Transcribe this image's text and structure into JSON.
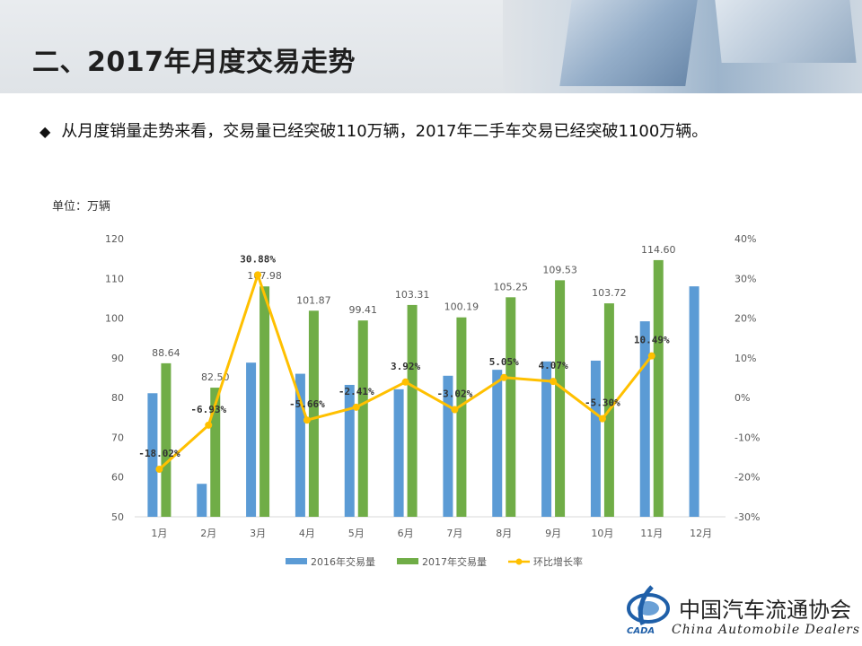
{
  "header": {
    "title": "二、2017年月度交易走势"
  },
  "bullet": {
    "icon": "diamond-bullet-icon",
    "text": "从月度销量走势来看，交易量已经突破110万辆，2017年二手车交易已经突破1100万辆。"
  },
  "unit_label": "单位：万辆",
  "logo": {
    "name_cn": "中国汽车流通协会",
    "name_en": "China  Automobile Dealers",
    "abbr": "CADA"
  },
  "colors": {
    "series_2016": "#5b9bd5",
    "series_2017": "#70ad47",
    "growth_line": "#ffc000"
  },
  "chart_data": {
    "type": "bar",
    "categories": [
      "1月",
      "2月",
      "3月",
      "4月",
      "5月",
      "6月",
      "7月",
      "8月",
      "9月",
      "10月",
      "11月",
      "12月"
    ],
    "series": [
      {
        "name": "2016年交易量",
        "type": "bar",
        "axis": "left",
        "values": [
          81.1,
          58.3,
          88.8,
          86.0,
          83.2,
          82.1,
          85.5,
          87.0,
          89.1,
          89.3,
          99.2,
          108.0
        ]
      },
      {
        "name": "2017年交易量",
        "type": "bar",
        "axis": "left",
        "values": [
          88.64,
          82.5,
          107.98,
          101.87,
          99.41,
          103.31,
          100.19,
          105.25,
          109.53,
          103.72,
          114.6,
          null
        ],
        "labels": [
          "88.64",
          "82.50",
          "107.98",
          "101.87",
          "99.41",
          "103.31",
          "100.19",
          "105.25",
          "109.53",
          "103.72",
          "114.60",
          ""
        ]
      },
      {
        "name": "环比增长率",
        "type": "line",
        "axis": "right",
        "values": [
          -18.02,
          -6.93,
          30.88,
          -5.66,
          -2.41,
          3.92,
          -3.02,
          5.05,
          4.07,
          -5.3,
          10.49,
          null
        ],
        "labels": [
          "-18.02%",
          "-6.93%",
          "30.88%",
          "-5.66%",
          "-2.41%",
          "3.92%",
          "-3.02%",
          "5.05%",
          "4.07%",
          "-5.30%",
          "10.49%",
          ""
        ]
      }
    ],
    "y_left": {
      "min": 50,
      "max": 120,
      "ticks": [
        "50",
        "60",
        "70",
        "80",
        "90",
        "100",
        "110",
        "120"
      ]
    },
    "y_right": {
      "min": -30,
      "max": 40,
      "ticks": [
        "-30%",
        "-20%",
        "-10%",
        "0%",
        "10%",
        "20%",
        "30%",
        "40%"
      ]
    },
    "grid": false,
    "legend": "bottom"
  }
}
